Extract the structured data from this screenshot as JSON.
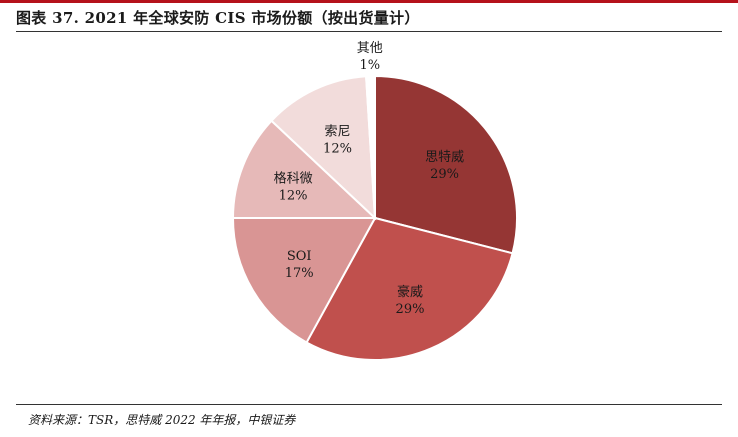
{
  "header": {
    "title": "图表 37. 2021 年全球安防 CIS 市场份额（按出货量计）"
  },
  "footer": {
    "source": "资料来源：TSR，思特威 2022 年年报，中银证券"
  },
  "chart_data": {
    "type": "pie",
    "title": "",
    "start_angle_deg": 0,
    "direction": "clockwise",
    "slices": [
      {
        "label": "思特威",
        "value": 29,
        "value_label": "29%",
        "color": "#953634"
      },
      {
        "label": "豪威",
        "value": 29,
        "value_label": "29%",
        "color": "#c0504d"
      },
      {
        "label": "SOI",
        "value": 17,
        "value_label": "17%",
        "color": "#d99594"
      },
      {
        "label": "格科微",
        "value": 12,
        "value_label": "12%",
        "color": "#e6b9b8"
      },
      {
        "label": "索尼",
        "value": 12,
        "value_label": "12%",
        "color": "#f2dcdb"
      },
      {
        "label": "其他",
        "value": 1,
        "value_label": "1%",
        "color": "#ffffff",
        "label_outside": true
      }
    ]
  }
}
